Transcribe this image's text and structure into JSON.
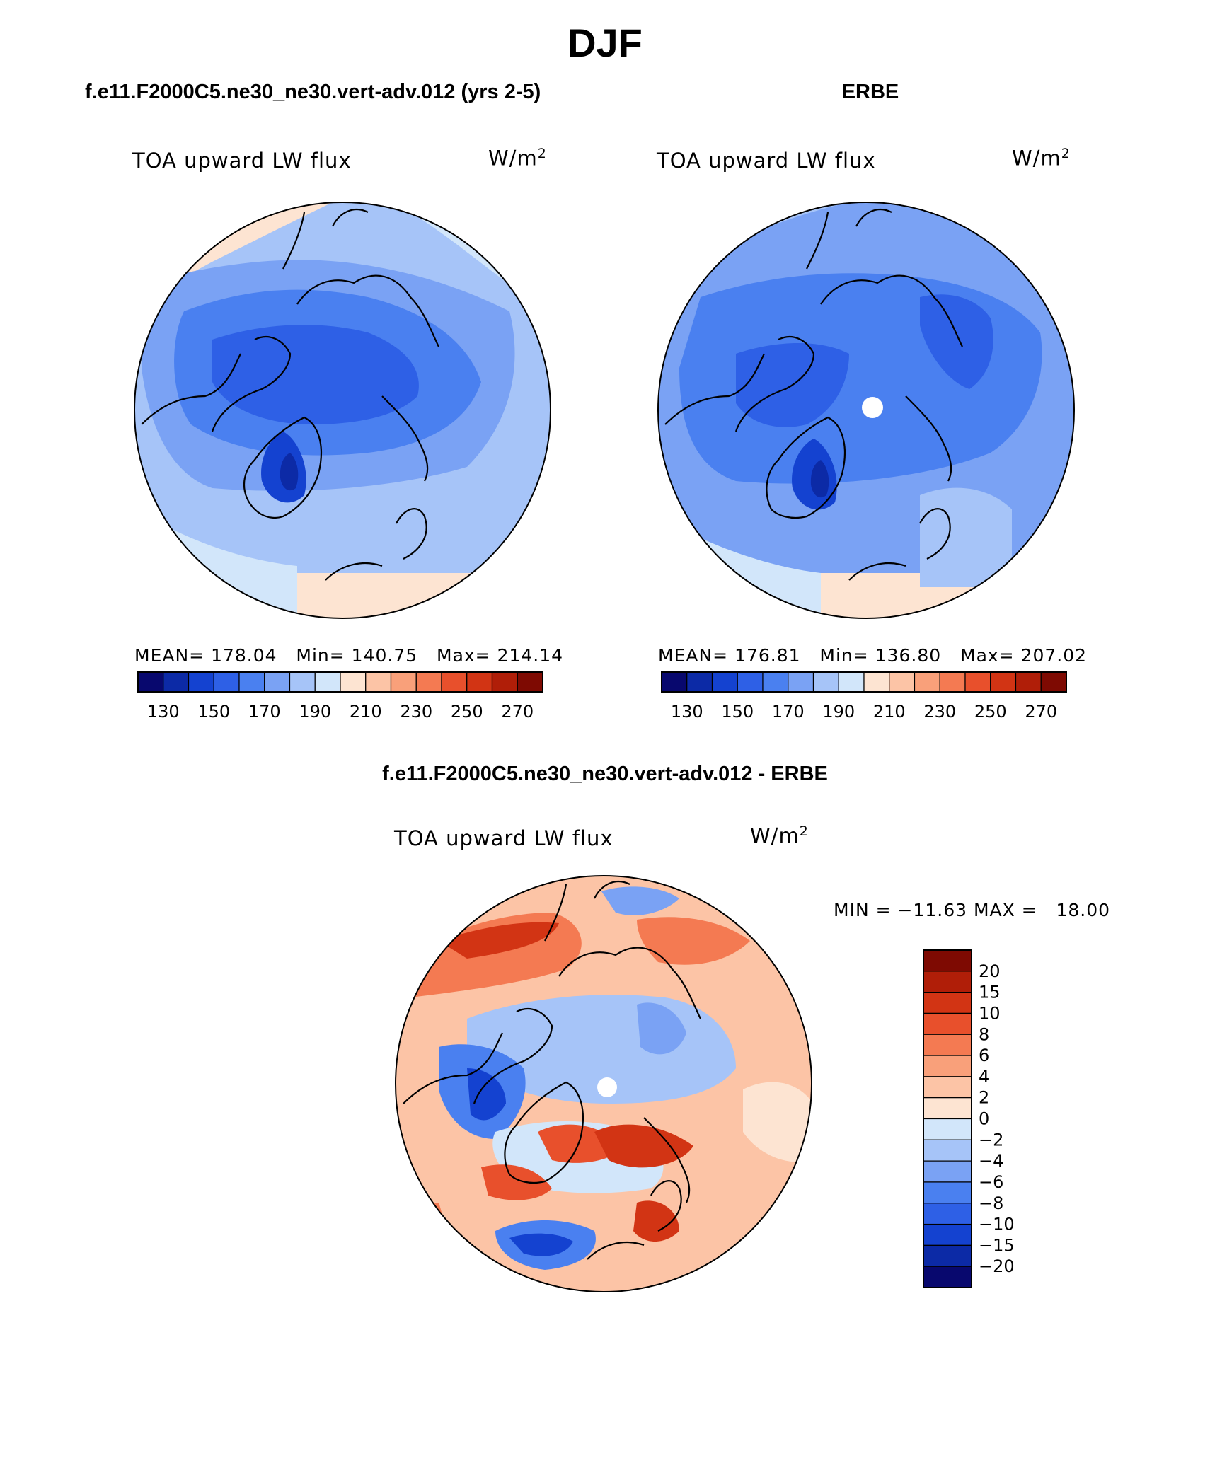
{
  "page_title": "DJF",
  "panels": [
    {
      "header": "f.e11.F2000C5.ne30_ne30.vert-adv.012 (yrs 2-5)",
      "variable": "TOA upward LW flux",
      "units_base": "W/m",
      "units_exp": "2",
      "mean_label": "MEAN=",
      "mean": "178.04",
      "min_label": "Min=",
      "min": "140.75",
      "max_label": "Max=",
      "max": "214.14"
    },
    {
      "header": "ERBE",
      "variable": "TOA upward LW flux",
      "units_base": "W/m",
      "units_exp": "2",
      "mean_label": "MEAN=",
      "mean": "176.81",
      "min_label": "Min=",
      "min": "136.80",
      "max_label": "Max=",
      "max": "207.02"
    }
  ],
  "diff_panel": {
    "header": "f.e11.F2000C5.ne30_ne30.vert-adv.012 - ERBE",
    "variable": "TOA upward LW flux",
    "units_base": "W/m",
    "units_exp": "2",
    "minmax_text": "MIN = −11.63 MAX =   18.00"
  },
  "colorbar_field": {
    "colors": [
      "#08086e",
      "#0c2aa6",
      "#1442d0",
      "#2e60e6",
      "#4a80f0",
      "#7aa2f4",
      "#a6c4f8",
      "#d2e6fa",
      "#fde4d2",
      "#fcc4a6",
      "#f9a07a",
      "#f47a52",
      "#e8502c",
      "#d23414",
      "#b01e08",
      "#7e0a02"
    ],
    "tick_labels": [
      "130",
      "150",
      "170",
      "190",
      "210",
      "230",
      "250",
      "270"
    ]
  },
  "colorbar_diff": {
    "colors": [
      "#7e0a02",
      "#b01e08",
      "#d23414",
      "#e8502c",
      "#f47a52",
      "#f9a07a",
      "#fcc4a6",
      "#fde4d2",
      "#d2e6fa",
      "#a6c4f8",
      "#7aa2f4",
      "#4a80f0",
      "#2e60e6",
      "#1442d0",
      "#0c2aa6",
      "#08086e"
    ],
    "tick_labels": [
      "20",
      "15",
      "10",
      "8",
      "6",
      "4",
      "2",
      "0",
      "−2",
      "−4",
      "−6",
      "−8",
      "−10",
      "−15",
      "−20"
    ]
  }
}
